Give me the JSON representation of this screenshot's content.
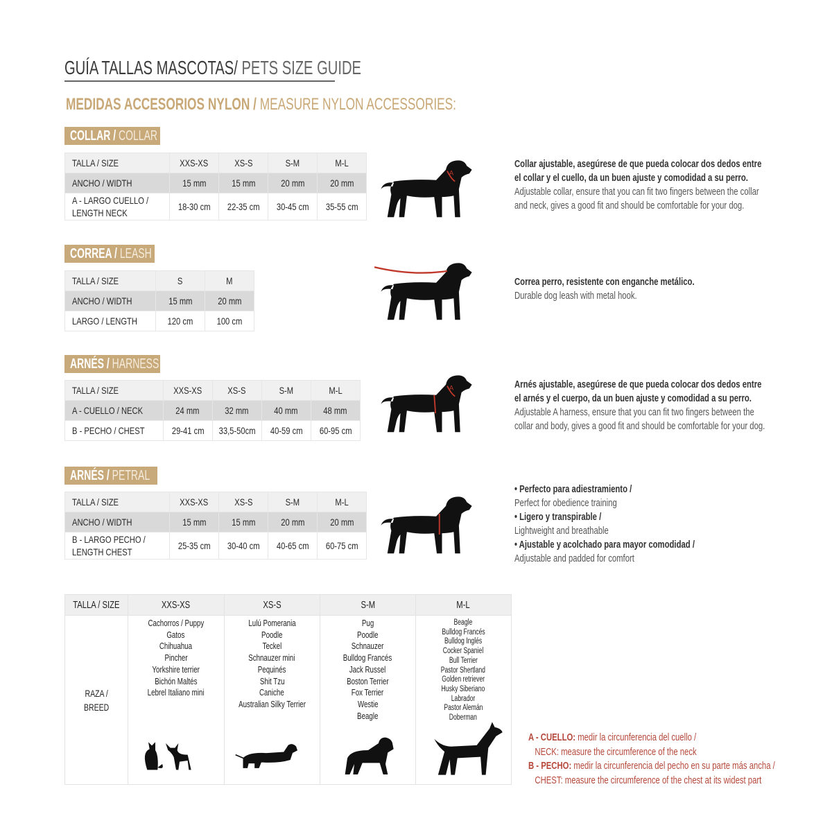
{
  "title": {
    "es": "GUÍA TALLAS MASCOTAS/",
    "en": " PETS SIZE GUIDE"
  },
  "subtitle": {
    "es": "MEDIDAS ACCESORIOS NYLON /",
    "en": " MEASURE NYLON ACCESSORIES:"
  },
  "colors": {
    "tan": "#c8a97a",
    "red": "#b5483a",
    "header_row": "#f0f0f0",
    "width_row": "#d9d9d9"
  },
  "sections": [
    {
      "label_es": "COLLAR /",
      "label_en": " COLLAR",
      "rows": [
        [
          "TALLA / SIZE",
          "XXS-XS",
          "XS-S",
          "S-M",
          "M-L"
        ],
        [
          "ANCHO / WIDTH",
          "15 mm",
          "15 mm",
          "20 mm",
          "20 mm"
        ],
        [
          "A - LARGO CUELLO / LENGTH NECK",
          "18-30 cm",
          "22-35 cm",
          "30-45 cm",
          "35-55 cm"
        ]
      ],
      "icon": "dog-collar-icon",
      "desc": [
        {
          "t": "Collar ajustable, asegúrese de que pueda colocar dos dedos entre",
          "s": "es"
        },
        {
          "t": "el collar y el cuello, da un buen ajuste y comodidad a su perro.",
          "s": "es"
        },
        {
          "t": "Adjustable collar, ensure that you can fit two fingers between the collar",
          "s": "en"
        },
        {
          "t": "and neck, gives a good fit and should be comfortable for your dog.",
          "s": "en"
        }
      ]
    },
    {
      "label_es": "CORREA /",
      "label_en": " LEASH",
      "rows": [
        [
          "TALLA / SIZE",
          "S",
          "M"
        ],
        [
          "ANCHO / WIDTH",
          "15 mm",
          "20 mm"
        ],
        [
          "LARGO / LENGTH",
          "120 cm",
          "100 cm"
        ]
      ],
      "icon": "dog-leash-icon",
      "desc": [
        {
          "t": "Correa perro, resistente con enganche metálico.",
          "s": "es"
        },
        {
          "t": "Durable dog leash with metal hook.",
          "s": "en"
        }
      ]
    },
    {
      "label_es": "ARNÉS /",
      "label_en": " HARNESS",
      "rows": [
        [
          "TALLA / SIZE",
          "XXS-XS",
          "XS-S",
          "S-M",
          "M-L"
        ],
        [
          "A - CUELLO / NECK",
          "24 mm",
          "32 mm",
          "40 mm",
          "48 mm"
        ],
        [
          "B - PECHO / CHEST",
          "29-41 cm",
          "33,5-50cm",
          "40-59 cm",
          "60-95 cm"
        ]
      ],
      "icon": "dog-harness-icon",
      "desc": [
        {
          "t": "Arnés ajustable, asegúrese de que pueda colocar dos dedos entre",
          "s": "es"
        },
        {
          "t": "el arnés y el cuerpo, da un buen ajuste y comodidad a su perro.",
          "s": "es"
        },
        {
          "t": "Adjustable A harness, ensure that you can fit two fingers between the",
          "s": "en"
        },
        {
          "t": "collar and body, gives a good fit and should be comfortable for your dog.",
          "s": "en"
        }
      ]
    },
    {
      "label_es": "ARNÉS /",
      "label_en": " PETRAL",
      "rows": [
        [
          "TALLA / SIZE",
          "XXS-XS",
          "XS-S",
          "S-M",
          "M-L"
        ],
        [
          "ANCHO / WIDTH",
          "15 mm",
          "15 mm",
          "20 mm",
          "20 mm"
        ],
        [
          "B - LARGO PECHO / LENGTH CHEST",
          "25-35 cm",
          "30-40 cm",
          "40-65 cm",
          "60-75 cm"
        ]
      ],
      "icon": "dog-petral-icon",
      "desc": [
        {
          "t": "• Perfecto para adiestramiento /",
          "s": "es"
        },
        {
          "t": "  Perfect for obedience training",
          "s": "en"
        },
        {
          "t": "• Ligero y transpirable /",
          "s": "es"
        },
        {
          "t": "  Lightweight and breathable",
          "s": "en"
        },
        {
          "t": "• Ajustable y acolchado para mayor comodidad /",
          "s": "es"
        },
        {
          "t": "  Adjustable and padded for comfort",
          "s": "en"
        }
      ]
    }
  ],
  "breeds": {
    "header": [
      "TALLA /  SIZE",
      "XXS-XS",
      "XS-S",
      "S-M",
      "M-L"
    ],
    "row_label": [
      "RAZA /",
      "BREED"
    ],
    "columns": [
      [
        "Cachorros / Puppy",
        "Gatos",
        "Chihuahua",
        "Pincher",
        "Yorkshire terrier",
        "Bichón Maltés",
        "Lebrel Italiano mini"
      ],
      [
        "Lulú Pomerania",
        "Poodle",
        "Teckel",
        "Schnauzer mini",
        "Pequinés",
        "Shit Tzu",
        "Caniche",
        "Australian Silky Terrier"
      ],
      [
        "Pug",
        "Poodle",
        "Schnauzer",
        "Bulldog Francés",
        "Jack Russel",
        "Boston Terrier",
        "Fox Terrier",
        "Westie",
        "Beagle"
      ],
      [
        "Beagle",
        "Bulldog Francés",
        "Bulldog Inglés",
        "Cocker Spaniel",
        "Bull Terrier",
        "Pastor Shertland",
        "Golden retriever",
        "Husky Siberiano",
        "Labrador",
        "Pastor Alemán",
        "Doberman"
      ]
    ],
    "icons": [
      "cat-and-chihuahua-icon",
      "dachshund-icon",
      "schnauzer-icon",
      "doberman-icon"
    ]
  },
  "legend": [
    {
      "b": "A - CUELLO:",
      "t": " medir la circunferencia del cuello /"
    },
    {
      "b": "",
      "t": "   NECK: measure the circumference of the neck"
    },
    {
      "b": "B - PECHO:",
      "t": " medir la circunferencia del pecho en su parte más ancha /"
    },
    {
      "b": "",
      "t": "   CHEST: measure the circumference of the chest at its widest part"
    }
  ]
}
